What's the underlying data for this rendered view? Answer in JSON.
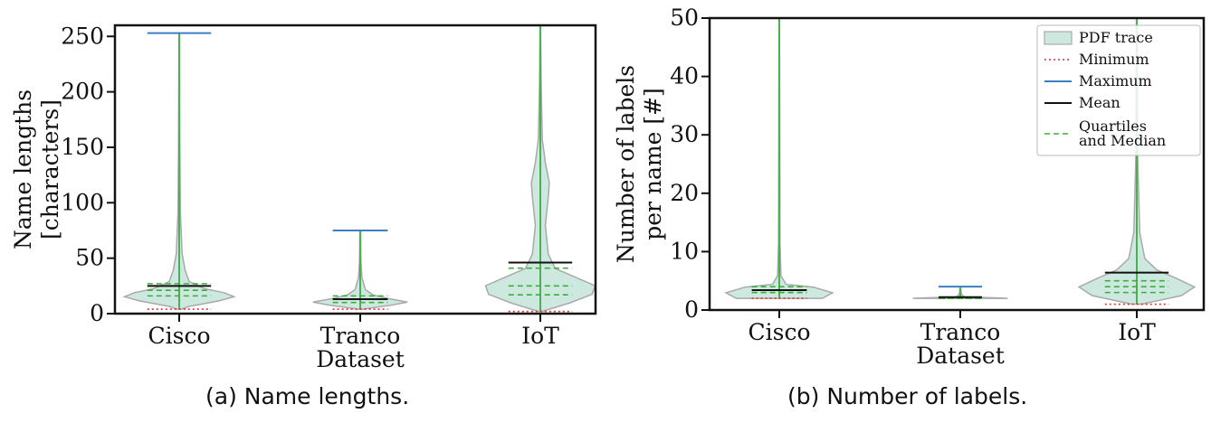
{
  "chart_data": [
    {
      "type": "violin",
      "categories": [
        "Cisco",
        "Tranco\nDataset",
        "IoT"
      ],
      "ylabel": "Name lengths\n[characters]",
      "ylim": [
        0,
        260
      ],
      "yticks": [
        0,
        50,
        100,
        150,
        200,
        250
      ],
      "stats": [
        {
          "min": 4,
          "q1": 16,
          "median": 21,
          "q3": 27,
          "mean": 25,
          "max": 253
        },
        {
          "min": 4,
          "q1": 10,
          "median": 13,
          "q3": 16,
          "mean": 13,
          "max": 75
        },
        {
          "min": 2,
          "q1": 17,
          "median": 25,
          "q3": 41,
          "mean": 46,
          "max": 260
        }
      ],
      "caption": "(a) Name lengths."
    },
    {
      "type": "violin",
      "categories": [
        "Cisco",
        "Tranco\nDataset",
        "IoT"
      ],
      "ylabel": "Number of labels\nper name [#]",
      "ylim": [
        0,
        50
      ],
      "yticks": [
        0,
        10,
        20,
        30,
        40,
        50
      ],
      "stats": [
        {
          "min": 2,
          "q1": 3,
          "median": 3,
          "q3": 4,
          "mean": 3.4,
          "max": 50
        },
        {
          "min": 2,
          "q1": 2,
          "median": 2,
          "q3": 2,
          "mean": 2.2,
          "max": 4
        },
        {
          "min": 1,
          "q1": 3,
          "median": 4,
          "q3": 5,
          "mean": 6.4,
          "max": 50
        }
      ],
      "caption": "(b) Number of labels."
    }
  ],
  "legend": {
    "position": "upper-right of panel (b)",
    "entries": [
      {
        "label": "PDF trace",
        "style": "patch"
      },
      {
        "label": "Minimum",
        "style": "dotted"
      },
      {
        "label": "Maximum",
        "style": "solid-blue"
      },
      {
        "label": "Mean",
        "style": "solid-black"
      },
      {
        "label": "Quartiles\nand Median",
        "style": "dashed-green"
      }
    ]
  },
  "colors": {
    "fill": "#cde9df",
    "outline": "#a9a9a9",
    "stem": "#4caf50",
    "minimum": "#e03030",
    "maximum": "#3a7fc1",
    "mean": "#111111",
    "quartile": "#3dae3d"
  }
}
